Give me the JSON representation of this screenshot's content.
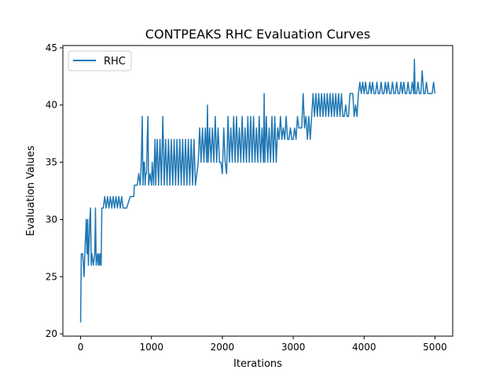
{
  "chart_data": {
    "type": "line",
    "title": "CONTPEAKS RHC Evaluation Curves",
    "xlabel": "Iterations",
    "ylabel": "Evaluation Values",
    "xlim": [
      -250,
      5250
    ],
    "ylim": [
      19.8,
      45.2
    ],
    "xticks": [
      0,
      1000,
      2000,
      3000,
      4000,
      5000
    ],
    "yticks": [
      20,
      25,
      30,
      35,
      40,
      45
    ],
    "grid": false,
    "legend": "upper-left",
    "series": [
      {
        "name": "RHC",
        "color": "#1f77b4",
        "points": [
          [
            0,
            21
          ],
          [
            10,
            27
          ],
          [
            30,
            27
          ],
          [
            40,
            26
          ],
          [
            50,
            25
          ],
          [
            60,
            27
          ],
          [
            80,
            30
          ],
          [
            90,
            27
          ],
          [
            100,
            30
          ],
          [
            110,
            26
          ],
          [
            130,
            30
          ],
          [
            140,
            31
          ],
          [
            150,
            26
          ],
          [
            160,
            27
          ],
          [
            180,
            26
          ],
          [
            200,
            27
          ],
          [
            210,
            31
          ],
          [
            220,
            26
          ],
          [
            240,
            27
          ],
          [
            250,
            26
          ],
          [
            260,
            27
          ],
          [
            270,
            26
          ],
          [
            280,
            27
          ],
          [
            290,
            26
          ],
          [
            300,
            31
          ],
          [
            320,
            31
          ],
          [
            340,
            32
          ],
          [
            360,
            31
          ],
          [
            380,
            32
          ],
          [
            400,
            31
          ],
          [
            420,
            32
          ],
          [
            440,
            31
          ],
          [
            460,
            32
          ],
          [
            480,
            31
          ],
          [
            500,
            32
          ],
          [
            520,
            31
          ],
          [
            540,
            32
          ],
          [
            560,
            31
          ],
          [
            580,
            32
          ],
          [
            600,
            31
          ],
          [
            650,
            31
          ],
          [
            700,
            32
          ],
          [
            750,
            32
          ],
          [
            760,
            33
          ],
          [
            800,
            33
          ],
          [
            820,
            34
          ],
          [
            840,
            33
          ],
          [
            850,
            34
          ],
          [
            860,
            36
          ],
          [
            870,
            39
          ],
          [
            880,
            33
          ],
          [
            890,
            35
          ],
          [
            900,
            35
          ],
          [
            910,
            33
          ],
          [
            920,
            34
          ],
          [
            930,
            34
          ],
          [
            940,
            37
          ],
          [
            950,
            39
          ],
          [
            960,
            33
          ],
          [
            980,
            34
          ],
          [
            1000,
            33
          ],
          [
            1010,
            35
          ],
          [
            1030,
            33
          ],
          [
            1050,
            37
          ],
          [
            1060,
            33
          ],
          [
            1080,
            37
          ],
          [
            1100,
            33
          ],
          [
            1120,
            37
          ],
          [
            1140,
            33
          ],
          [
            1160,
            39
          ],
          [
            1180,
            33
          ],
          [
            1200,
            37
          ],
          [
            1220,
            33
          ],
          [
            1240,
            37
          ],
          [
            1260,
            33
          ],
          [
            1280,
            37
          ],
          [
            1300,
            33
          ],
          [
            1320,
            37
          ],
          [
            1340,
            33
          ],
          [
            1360,
            37
          ],
          [
            1380,
            33
          ],
          [
            1400,
            37
          ],
          [
            1420,
            33
          ],
          [
            1440,
            37
          ],
          [
            1460,
            33
          ],
          [
            1480,
            37
          ],
          [
            1500,
            33
          ],
          [
            1520,
            37
          ],
          [
            1540,
            33
          ],
          [
            1560,
            37
          ],
          [
            1580,
            33
          ],
          [
            1600,
            37
          ],
          [
            1620,
            33
          ],
          [
            1640,
            34
          ],
          [
            1660,
            35
          ],
          [
            1680,
            38
          ],
          [
            1700,
            35
          ],
          [
            1720,
            38
          ],
          [
            1740,
            35
          ],
          [
            1760,
            38
          ],
          [
            1780,
            35
          ],
          [
            1790,
            40
          ],
          [
            1800,
            35
          ],
          [
            1820,
            38
          ],
          [
            1840,
            35
          ],
          [
            1860,
            38
          ],
          [
            1880,
            35
          ],
          [
            1900,
            39
          ],
          [
            1920,
            35
          ],
          [
            1940,
            38
          ],
          [
            1960,
            35
          ],
          [
            1980,
            35
          ],
          [
            2000,
            34
          ],
          [
            2020,
            38
          ],
          [
            2040,
            35
          ],
          [
            2060,
            34
          ],
          [
            2080,
            39
          ],
          [
            2100,
            35
          ],
          [
            2120,
            38
          ],
          [
            2140,
            35
          ],
          [
            2160,
            39
          ],
          [
            2180,
            35
          ],
          [
            2200,
            39
          ],
          [
            2220,
            35
          ],
          [
            2240,
            38
          ],
          [
            2260,
            35
          ],
          [
            2280,
            39
          ],
          [
            2300,
            35
          ],
          [
            2320,
            38
          ],
          [
            2340,
            35
          ],
          [
            2360,
            39
          ],
          [
            2380,
            35
          ],
          [
            2400,
            39
          ],
          [
            2420,
            35
          ],
          [
            2440,
            39
          ],
          [
            2460,
            35
          ],
          [
            2480,
            38
          ],
          [
            2500,
            35
          ],
          [
            2520,
            39
          ],
          [
            2540,
            35
          ],
          [
            2560,
            38
          ],
          [
            2580,
            35
          ],
          [
            2590,
            41
          ],
          [
            2600,
            35
          ],
          [
            2620,
            39
          ],
          [
            2640,
            35
          ],
          [
            2660,
            38
          ],
          [
            2680,
            35
          ],
          [
            2700,
            39
          ],
          [
            2720,
            35
          ],
          [
            2740,
            39
          ],
          [
            2760,
            35
          ],
          [
            2780,
            38
          ],
          [
            2800,
            37
          ],
          [
            2820,
            39
          ],
          [
            2840,
            37
          ],
          [
            2860,
            38
          ],
          [
            2880,
            37
          ],
          [
            2900,
            39
          ],
          [
            2920,
            37
          ],
          [
            2940,
            37
          ],
          [
            2960,
            38
          ],
          [
            2980,
            37
          ],
          [
            3000,
            37
          ],
          [
            3020,
            38
          ],
          [
            3040,
            37
          ],
          [
            3060,
            39
          ],
          [
            3080,
            38
          ],
          [
            3100,
            38
          ],
          [
            3120,
            38
          ],
          [
            3140,
            41
          ],
          [
            3160,
            38
          ],
          [
            3180,
            39
          ],
          [
            3200,
            37
          ],
          [
            3220,
            39
          ],
          [
            3240,
            37
          ],
          [
            3260,
            39
          ],
          [
            3280,
            41
          ],
          [
            3300,
            39
          ],
          [
            3320,
            41
          ],
          [
            3340,
            39
          ],
          [
            3360,
            41
          ],
          [
            3380,
            39
          ],
          [
            3400,
            41
          ],
          [
            3420,
            39
          ],
          [
            3440,
            41
          ],
          [
            3460,
            39
          ],
          [
            3480,
            41
          ],
          [
            3500,
            39
          ],
          [
            3520,
            41
          ],
          [
            3540,
            39
          ],
          [
            3560,
            41
          ],
          [
            3580,
            39
          ],
          [
            3600,
            41
          ],
          [
            3620,
            39
          ],
          [
            3640,
            41
          ],
          [
            3660,
            39
          ],
          [
            3680,
            41
          ],
          [
            3700,
            39
          ],
          [
            3720,
            39
          ],
          [
            3740,
            40
          ],
          [
            3760,
            39
          ],
          [
            3780,
            39
          ],
          [
            3800,
            41
          ],
          [
            3820,
            41
          ],
          [
            3840,
            41
          ],
          [
            3860,
            39
          ],
          [
            3880,
            40
          ],
          [
            3900,
            39
          ],
          [
            3920,
            41
          ],
          [
            3940,
            42
          ],
          [
            3960,
            41
          ],
          [
            3980,
            42
          ],
          [
            4000,
            41
          ],
          [
            4020,
            42
          ],
          [
            4040,
            41
          ],
          [
            4060,
            41
          ],
          [
            4080,
            42
          ],
          [
            4100,
            41
          ],
          [
            4120,
            42
          ],
          [
            4140,
            41
          ],
          [
            4160,
            41
          ],
          [
            4180,
            42
          ],
          [
            4200,
            41
          ],
          [
            4220,
            41
          ],
          [
            4240,
            42
          ],
          [
            4260,
            41
          ],
          [
            4280,
            41
          ],
          [
            4300,
            42
          ],
          [
            4320,
            41
          ],
          [
            4340,
            42
          ],
          [
            4360,
            41
          ],
          [
            4380,
            41
          ],
          [
            4400,
            42
          ],
          [
            4420,
            41
          ],
          [
            4440,
            41
          ],
          [
            4460,
            42
          ],
          [
            4480,
            41
          ],
          [
            4500,
            41
          ],
          [
            4520,
            42
          ],
          [
            4540,
            41
          ],
          [
            4560,
            42
          ],
          [
            4580,
            41
          ],
          [
            4600,
            41
          ],
          [
            4620,
            42
          ],
          [
            4640,
            41
          ],
          [
            4660,
            41
          ],
          [
            4680,
            42
          ],
          [
            4700,
            41
          ],
          [
            4710,
            44
          ],
          [
            4720,
            41
          ],
          [
            4740,
            41
          ],
          [
            4760,
            42
          ],
          [
            4780,
            41
          ],
          [
            4800,
            41
          ],
          [
            4820,
            43
          ],
          [
            4840,
            41
          ],
          [
            4860,
            41
          ],
          [
            4880,
            42
          ],
          [
            4900,
            41
          ],
          [
            4920,
            41
          ],
          [
            4940,
            41
          ],
          [
            4960,
            41
          ],
          [
            4980,
            42
          ],
          [
            5000,
            41
          ]
        ]
      }
    ]
  }
}
